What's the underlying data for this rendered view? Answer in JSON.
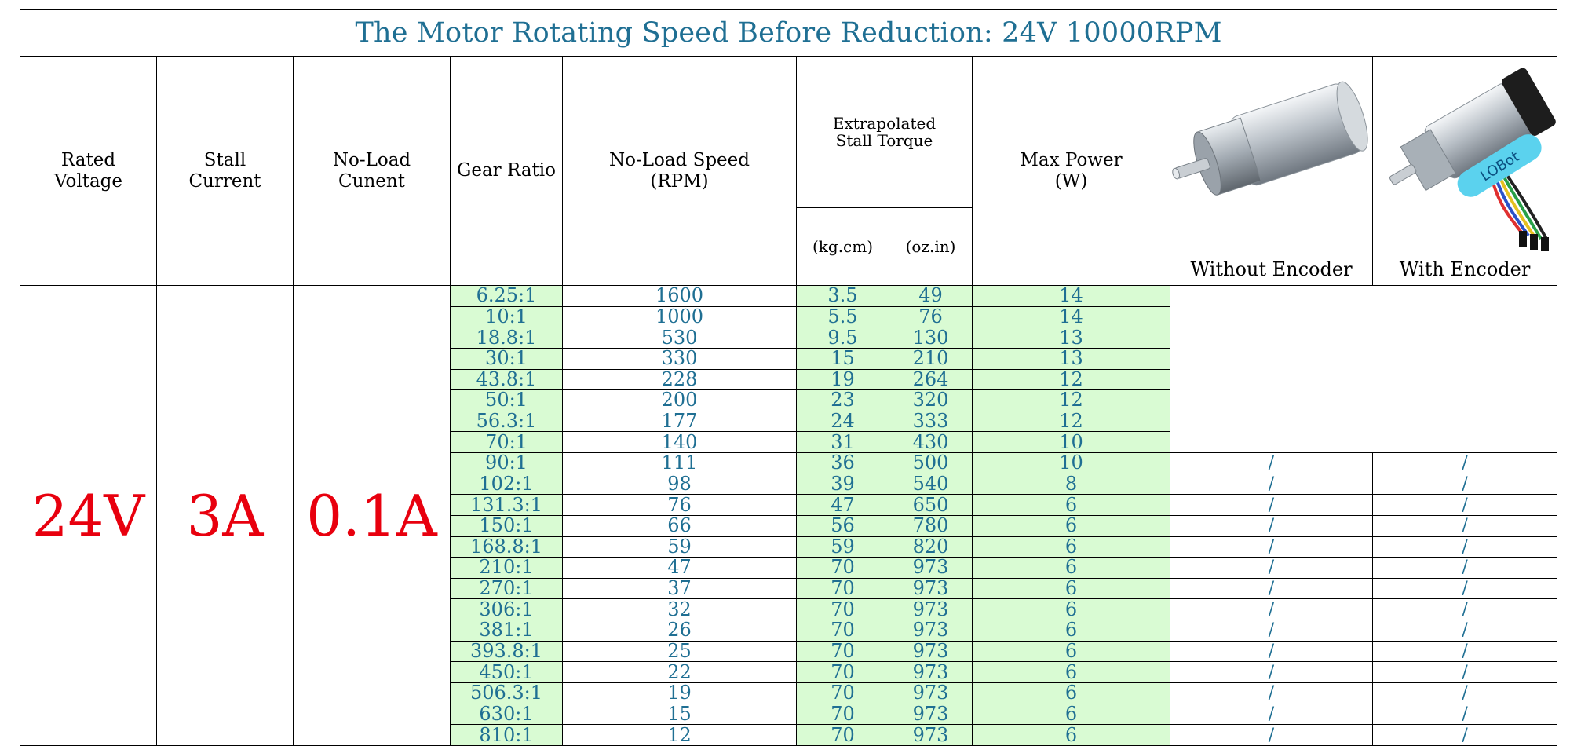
{
  "title": "The Motor Rotating Speed Before Reduction: 24V 10000RPM",
  "headers": {
    "rated_voltage": [
      "Rated",
      "Voltage"
    ],
    "stall_current": [
      "Stall",
      "Current"
    ],
    "no_load_current": [
      "No-Load",
      "Cunent"
    ],
    "gear_ratio": "Gear Ratio",
    "no_load_speed": [
      "No-Load Speed",
      "(RPM)"
    ],
    "stall_torque": [
      "Extrapolated",
      "Stall Torque"
    ],
    "torque_kgcm": "(kg.cm)",
    "torque_ozin": "(oz.in)",
    "max_power": [
      "Max Power",
      "(W)"
    ]
  },
  "values": {
    "rated_voltage": "24V",
    "stall_current": "3A",
    "no_load_current": "0.1A"
  },
  "products": {
    "without_encoder": "Without Encoder",
    "with_encoder": "With Encoder",
    "brand_on_tag": "LOBot"
  },
  "empty_mark": "/",
  "colors": {
    "title": "#1f6f93",
    "value_text": "#1f6f93",
    "highlight": "#e8000e",
    "green_fill": "#d9fbd3"
  },
  "rows": [
    {
      "ratio": "6.25:1",
      "rpm": "1600",
      "kgcm": "3.5",
      "ozin": "49",
      "power": "14"
    },
    {
      "ratio": "10:1",
      "rpm": "1000",
      "kgcm": "5.5",
      "ozin": "76",
      "power": "14"
    },
    {
      "ratio": "18.8:1",
      "rpm": "530",
      "kgcm": "9.5",
      "ozin": "130",
      "power": "13"
    },
    {
      "ratio": "30:1",
      "rpm": "330",
      "kgcm": "15",
      "ozin": "210",
      "power": "13"
    },
    {
      "ratio": "43.8:1",
      "rpm": "228",
      "kgcm": "19",
      "ozin": "264",
      "power": "12"
    },
    {
      "ratio": "50:1",
      "rpm": "200",
      "kgcm": "23",
      "ozin": "320",
      "power": "12"
    },
    {
      "ratio": "56.3:1",
      "rpm": "177",
      "kgcm": "24",
      "ozin": "333",
      "power": "12"
    },
    {
      "ratio": "70:1",
      "rpm": "140",
      "kgcm": "31",
      "ozin": "430",
      "power": "10"
    },
    {
      "ratio": "90:1",
      "rpm": "111",
      "kgcm": "36",
      "ozin": "500",
      "power": "10"
    },
    {
      "ratio": "102:1",
      "rpm": "98",
      "kgcm": "39",
      "ozin": "540",
      "power": "8"
    },
    {
      "ratio": "131.3:1",
      "rpm": "76",
      "kgcm": "47",
      "ozin": "650",
      "power": "6"
    },
    {
      "ratio": "150:1",
      "rpm": "66",
      "kgcm": "56",
      "ozin": "780",
      "power": "6"
    },
    {
      "ratio": "168.8:1",
      "rpm": "59",
      "kgcm": "59",
      "ozin": "820",
      "power": "6"
    },
    {
      "ratio": "210:1",
      "rpm": "47",
      "kgcm": "70",
      "ozin": "973",
      "power": "6"
    },
    {
      "ratio": "270:1",
      "rpm": "37",
      "kgcm": "70",
      "ozin": "973",
      "power": "6"
    },
    {
      "ratio": "306:1",
      "rpm": "32",
      "kgcm": "70",
      "ozin": "973",
      "power": "6"
    },
    {
      "ratio": "381:1",
      "rpm": "26",
      "kgcm": "70",
      "ozin": "973",
      "power": "6"
    },
    {
      "ratio": "393.8:1",
      "rpm": "25",
      "kgcm": "70",
      "ozin": "973",
      "power": "6"
    },
    {
      "ratio": "450:1",
      "rpm": "22",
      "kgcm": "70",
      "ozin": "973",
      "power": "6"
    },
    {
      "ratio": "506.3:1",
      "rpm": "19",
      "kgcm": "70",
      "ozin": "973",
      "power": "6"
    },
    {
      "ratio": "630:1",
      "rpm": "15",
      "kgcm": "70",
      "ozin": "973",
      "power": "6"
    },
    {
      "ratio": "810:1",
      "rpm": "12",
      "kgcm": "70",
      "ozin": "973",
      "power": "6"
    }
  ]
}
